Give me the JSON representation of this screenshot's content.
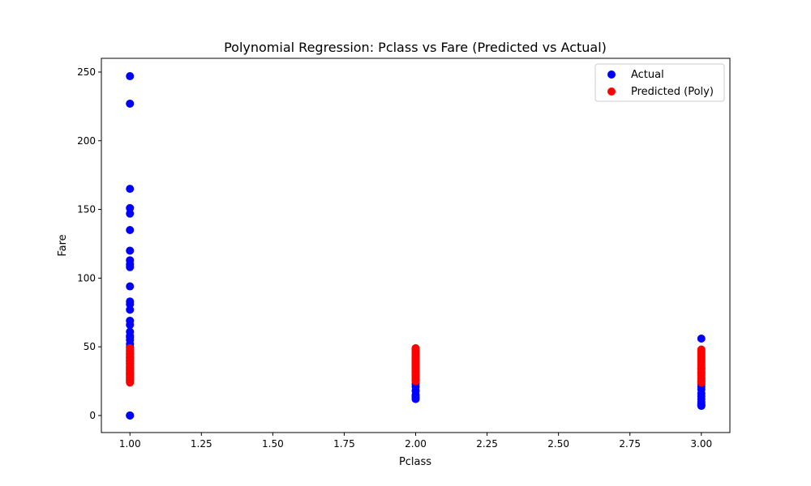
{
  "chart_data": {
    "type": "scatter",
    "title": "Polynomial Regression: Pclass vs Fare (Predicted vs Actual)",
    "xlabel": "Pclass",
    "ylabel": "Fare",
    "xlim": [
      0.9,
      3.1
    ],
    "ylim": [
      -12.4,
      260
    ],
    "xticks": [
      1.0,
      1.25,
      1.5,
      1.75,
      2.0,
      2.25,
      2.5,
      2.75,
      3.0
    ],
    "xtick_labels": [
      "1.00",
      "1.25",
      "1.50",
      "1.75",
      "2.00",
      "2.25",
      "2.50",
      "2.75",
      "3.00"
    ],
    "yticks": [
      0,
      50,
      100,
      150,
      200,
      250
    ],
    "ytick_labels": [
      "0",
      "50",
      "100",
      "150",
      "200",
      "250"
    ],
    "grid": false,
    "legend_position": "top-right",
    "series": [
      {
        "name": "Actual",
        "color": "#0000ff",
        "points": [
          [
            1,
            0
          ],
          [
            1,
            0
          ],
          [
            1,
            26
          ],
          [
            1,
            28
          ],
          [
            1,
            30
          ],
          [
            1,
            31
          ],
          [
            1,
            33
          ],
          [
            1,
            35
          ],
          [
            1,
            38
          ],
          [
            1,
            40
          ],
          [
            1,
            42
          ],
          [
            1,
            45
          ],
          [
            1,
            50
          ],
          [
            1,
            52
          ],
          [
            1,
            55
          ],
          [
            1,
            57
          ],
          [
            1,
            58
          ],
          [
            1,
            61
          ],
          [
            1,
            66
          ],
          [
            1,
            69
          ],
          [
            1,
            77
          ],
          [
            1,
            81
          ],
          [
            1,
            83
          ],
          [
            1,
            94
          ],
          [
            1,
            108
          ],
          [
            1,
            110
          ],
          [
            1,
            113
          ],
          [
            1,
            120
          ],
          [
            1,
            135
          ],
          [
            1,
            147
          ],
          [
            1,
            151
          ],
          [
            1,
            165
          ],
          [
            1,
            227
          ],
          [
            1,
            247
          ],
          [
            2,
            12
          ],
          [
            2,
            13
          ],
          [
            2,
            14
          ],
          [
            2,
            15
          ],
          [
            2,
            18
          ],
          [
            2,
            21
          ],
          [
            2,
            23
          ],
          [
            2,
            26
          ],
          [
            2,
            29
          ],
          [
            2,
            32
          ],
          [
            2,
            36
          ],
          [
            2,
            39
          ],
          [
            3,
            7
          ],
          [
            3,
            7.5
          ],
          [
            3,
            8
          ],
          [
            3,
            9
          ],
          [
            3,
            10
          ],
          [
            3,
            12
          ],
          [
            3,
            14
          ],
          [
            3,
            16
          ],
          [
            3,
            19
          ],
          [
            3,
            21
          ],
          [
            3,
            23
          ],
          [
            3,
            25
          ],
          [
            3,
            27
          ],
          [
            3,
            31
          ],
          [
            3,
            34
          ],
          [
            3,
            56
          ]
        ]
      },
      {
        "name": "Predicted (Poly)",
        "color": "#ff0000",
        "points": [
          [
            1,
            24
          ],
          [
            1,
            25
          ],
          [
            1,
            26
          ],
          [
            1,
            27
          ],
          [
            1,
            28
          ],
          [
            1,
            29
          ],
          [
            1,
            30
          ],
          [
            1,
            31
          ],
          [
            1,
            32
          ],
          [
            1,
            33
          ],
          [
            1,
            34
          ],
          [
            1,
            35
          ],
          [
            1,
            36
          ],
          [
            1,
            37
          ],
          [
            1,
            38
          ],
          [
            1,
            39
          ],
          [
            1,
            40
          ],
          [
            1,
            41
          ],
          [
            1,
            42
          ],
          [
            1,
            43
          ],
          [
            1,
            44
          ],
          [
            1,
            45
          ],
          [
            1,
            46
          ],
          [
            1,
            47
          ],
          [
            1,
            48
          ],
          [
            1,
            49
          ],
          [
            2,
            25
          ],
          [
            2,
            26
          ],
          [
            2,
            27
          ],
          [
            2,
            28
          ],
          [
            2,
            29
          ],
          [
            2,
            30
          ],
          [
            2,
            31
          ],
          [
            2,
            32
          ],
          [
            2,
            33
          ],
          [
            2,
            34
          ],
          [
            2,
            35
          ],
          [
            2,
            36
          ],
          [
            2,
            37
          ],
          [
            2,
            38
          ],
          [
            2,
            39
          ],
          [
            2,
            40
          ],
          [
            2,
            41
          ],
          [
            2,
            42
          ],
          [
            2,
            43
          ],
          [
            2,
            44
          ],
          [
            2,
            45
          ],
          [
            2,
            46
          ],
          [
            2,
            47
          ],
          [
            2,
            48
          ],
          [
            2,
            49
          ],
          [
            3,
            24
          ],
          [
            3,
            25
          ],
          [
            3,
            26
          ],
          [
            3,
            27
          ],
          [
            3,
            28
          ],
          [
            3,
            29
          ],
          [
            3,
            30
          ],
          [
            3,
            31
          ],
          [
            3,
            32
          ],
          [
            3,
            33
          ],
          [
            3,
            34
          ],
          [
            3,
            35
          ],
          [
            3,
            36
          ],
          [
            3,
            37
          ],
          [
            3,
            38
          ],
          [
            3,
            39
          ],
          [
            3,
            40
          ],
          [
            3,
            41
          ],
          [
            3,
            42
          ],
          [
            3,
            43
          ],
          [
            3,
            44
          ],
          [
            3,
            45
          ],
          [
            3,
            46
          ],
          [
            3,
            47
          ],
          [
            3,
            48
          ]
        ]
      }
    ]
  }
}
